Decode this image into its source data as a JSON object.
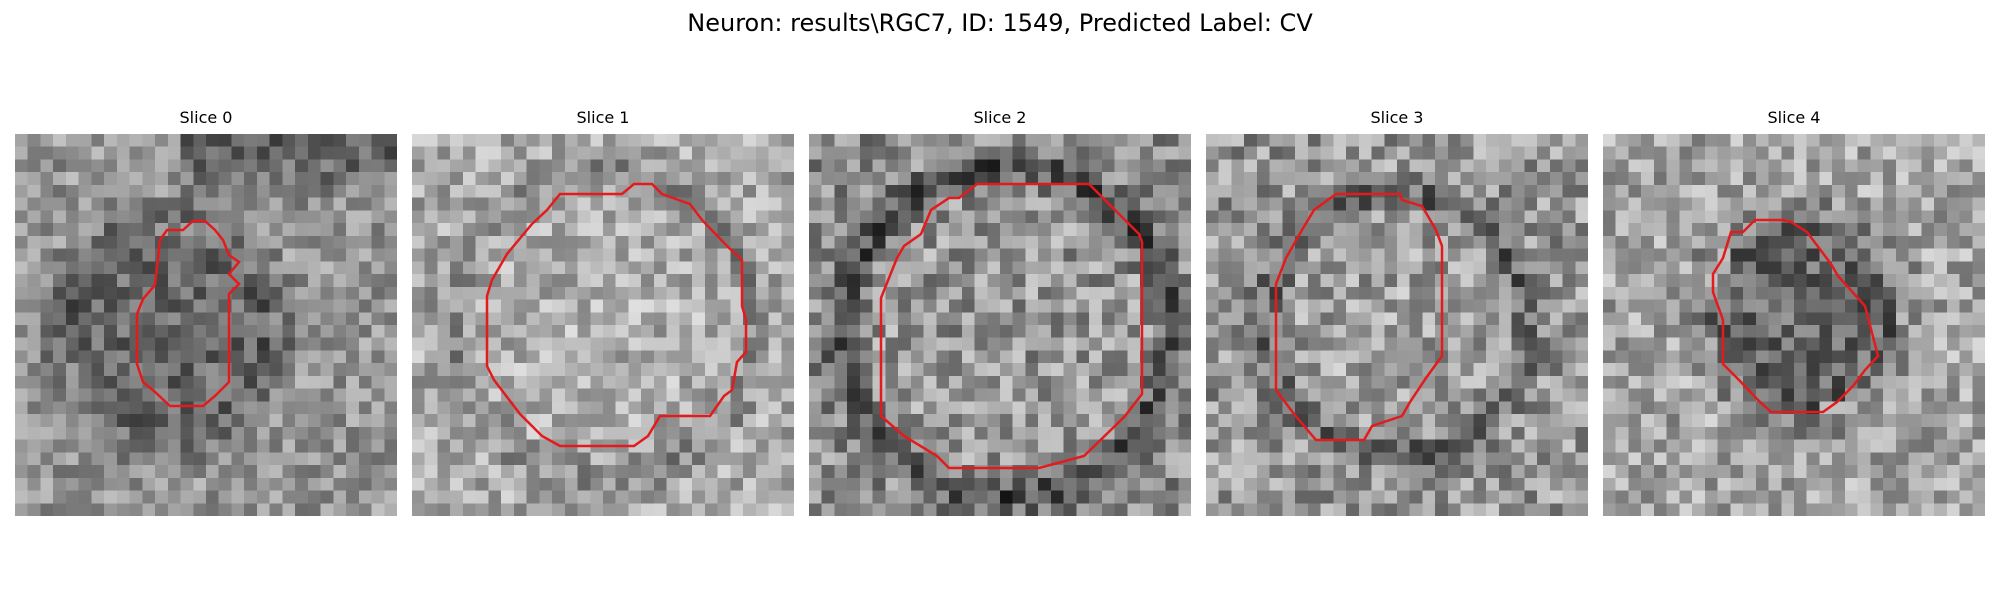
{
  "figure": {
    "title": "Neuron: results\\RGC7, ID: 1549, Predicted Label: CV"
  },
  "colors": {
    "contour": "#e41a1c",
    "background": "#ffffff"
  },
  "panels": [
    {
      "title": "Slice 0",
      "contour_color": "#e41a1c"
    },
    {
      "title": "Slice 1",
      "contour_color": "#e41a1c"
    },
    {
      "title": "Slice 2",
      "contour_color": "#e41a1c"
    },
    {
      "title": "Slice 3",
      "contour_color": "#e41a1c"
    },
    {
      "title": "Slice 4",
      "contour_color": "#e41a1c"
    }
  ]
}
